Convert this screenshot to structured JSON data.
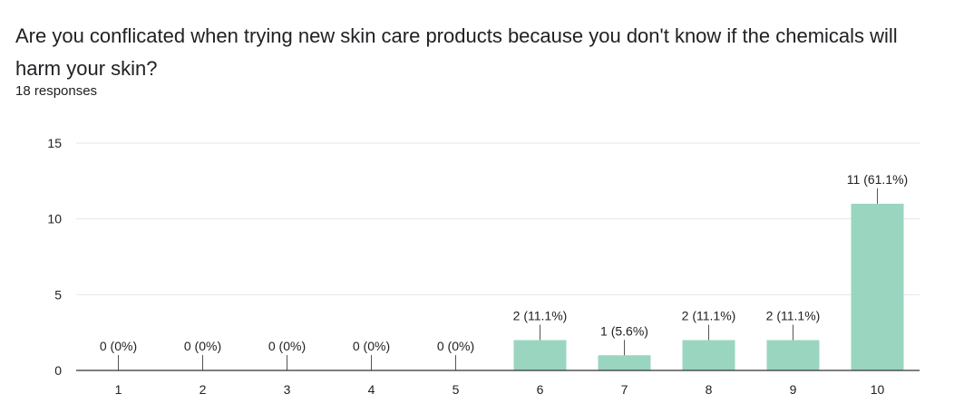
{
  "question": {
    "text": "Are you conflicated when trying new skin care products because you don't know if the chemicals will harm your skin?",
    "responses": "18 responses"
  },
  "colors": {
    "bar": "#9ad5c0",
    "grid": "#e6e6e6",
    "axis": "#333333",
    "leader": "#555555"
  },
  "chart_data": {
    "type": "bar",
    "categories": [
      "1",
      "2",
      "3",
      "4",
      "5",
      "6",
      "7",
      "8",
      "9",
      "10"
    ],
    "values": [
      0,
      0,
      0,
      0,
      0,
      2,
      1,
      2,
      2,
      11
    ],
    "data_labels": [
      "0 (0%)",
      "0 (0%)",
      "0 (0%)",
      "0 (0%)",
      "0 (0%)",
      "2 (11.1%)",
      "1 (5.6%)",
      "2 (11.1%)",
      "2 (11.1%)",
      "11 (61.1%)"
    ],
    "yticks": [
      0,
      5,
      10,
      15
    ],
    "ylim": [
      0,
      15
    ],
    "grid": true,
    "title": "",
    "xlabel": "",
    "ylabel": ""
  }
}
